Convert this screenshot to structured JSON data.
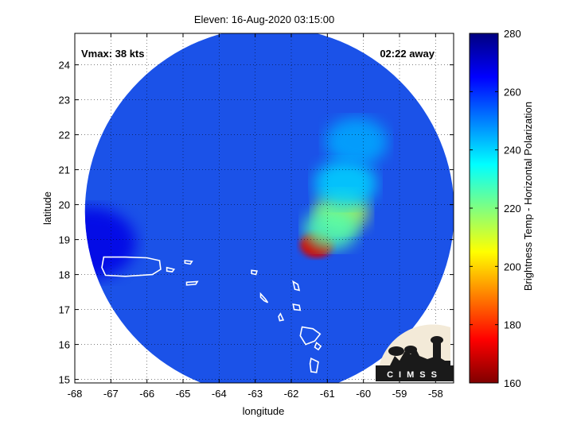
{
  "chart_data": {
    "type": "heatmap",
    "title": "Eleven: 16-Aug-2020 03:15:00",
    "xlabel": "longitude",
    "ylabel": "latitude",
    "xlim": [
      -68,
      -57.5
    ],
    "ylim": [
      14.9,
      24.9
    ],
    "xticks": [
      -68,
      -67,
      -66,
      -65,
      -64,
      -63,
      -62,
      -61,
      -60,
      -59,
      -58
    ],
    "yticks": [
      15,
      16,
      17,
      18,
      19,
      20,
      21,
      22,
      23,
      24
    ],
    "grid": true,
    "annotations": {
      "vmax": "Vmax: 38 kts",
      "time_away": "02:22 away"
    },
    "colorbar": {
      "label": "Brightness Temp - Horizontal Polarization",
      "range": [
        160,
        280
      ],
      "ticks": [
        160,
        180,
        200,
        220,
        240,
        260,
        280
      ]
    },
    "swath_center": [
      -62.6,
      19.8
    ],
    "features": [
      {
        "lon": -61.3,
        "lat": 18.85,
        "value": 170
      },
      {
        "lon": -60.6,
        "lat": 19.8,
        "value": 215
      },
      {
        "lon": -60.9,
        "lat": 19.3,
        "value": 225
      },
      {
        "lon": -60.5,
        "lat": 20.6,
        "value": 240
      },
      {
        "lon": -60.2,
        "lat": 21.8,
        "value": 245
      },
      {
        "lon": -67.6,
        "lat": 18.9,
        "value": 268
      }
    ],
    "coastlines": [
      {
        "name": "",
        "lonlat": [
          [
            -67.2,
            18.5
          ],
          [
            -66.6,
            18.5
          ],
          [
            -66.0,
            18.48
          ],
          [
            -65.65,
            18.4
          ],
          [
            -65.62,
            18.15
          ],
          [
            -65.85,
            18.0
          ],
          [
            -66.6,
            17.95
          ],
          [
            -67.15,
            17.98
          ],
          [
            -67.25,
            18.2
          ],
          [
            -67.2,
            18.5
          ]
        ]
      },
      {
        "name": "",
        "lonlat": [
          [
            -65.45,
            18.2
          ],
          [
            -65.25,
            18.15
          ],
          [
            -65.3,
            18.08
          ],
          [
            -65.45,
            18.1
          ],
          [
            -65.45,
            18.2
          ]
        ]
      },
      {
        "name": "",
        "lonlat": [
          [
            -64.95,
            18.4
          ],
          [
            -64.75,
            18.38
          ],
          [
            -64.8,
            18.3
          ],
          [
            -64.95,
            18.33
          ],
          [
            -64.95,
            18.4
          ]
        ]
      },
      {
        "name": "",
        "lonlat": [
          [
            -64.9,
            17.78
          ],
          [
            -64.6,
            17.8
          ],
          [
            -64.65,
            17.72
          ],
          [
            -64.9,
            17.7
          ],
          [
            -64.9,
            17.78
          ]
        ]
      },
      {
        "name": "",
        "lonlat": [
          [
            -63.1,
            18.12
          ],
          [
            -62.95,
            18.1
          ],
          [
            -62.98,
            18.0
          ],
          [
            -63.1,
            18.03
          ],
          [
            -63.1,
            18.12
          ]
        ]
      },
      {
        "name": "",
        "lonlat": [
          [
            -62.85,
            17.45
          ],
          [
            -62.72,
            17.3
          ],
          [
            -62.65,
            17.2
          ],
          [
            -62.75,
            17.25
          ],
          [
            -62.85,
            17.35
          ],
          [
            -62.85,
            17.45
          ]
        ]
      },
      {
        "name": "",
        "lonlat": [
          [
            -62.3,
            16.88
          ],
          [
            -62.22,
            16.7
          ],
          [
            -62.32,
            16.68
          ],
          [
            -62.35,
            16.8
          ],
          [
            -62.3,
            16.88
          ]
        ]
      },
      {
        "name": "",
        "lonlat": [
          [
            -61.95,
            17.8
          ],
          [
            -61.82,
            17.72
          ],
          [
            -61.78,
            17.55
          ],
          [
            -61.9,
            17.58
          ],
          [
            -61.95,
            17.8
          ]
        ]
      },
      {
        "name": "",
        "lonlat": [
          [
            -61.95,
            17.15
          ],
          [
            -61.78,
            17.12
          ],
          [
            -61.75,
            16.98
          ],
          [
            -61.92,
            17.0
          ],
          [
            -61.95,
            17.15
          ]
        ]
      },
      {
        "name": "",
        "lonlat": [
          [
            -61.7,
            16.5
          ],
          [
            -61.4,
            16.45
          ],
          [
            -61.2,
            16.3
          ],
          [
            -61.35,
            16.1
          ],
          [
            -61.6,
            16.0
          ],
          [
            -61.75,
            16.25
          ],
          [
            -61.7,
            16.5
          ]
        ]
      },
      {
        "name": "",
        "lonlat": [
          [
            -61.3,
            16.05
          ],
          [
            -61.18,
            15.95
          ],
          [
            -61.25,
            15.85
          ],
          [
            -61.35,
            15.92
          ],
          [
            -61.3,
            16.05
          ]
        ]
      },
      {
        "name": "",
        "lonlat": [
          [
            -61.45,
            15.6
          ],
          [
            -61.25,
            15.5
          ],
          [
            -61.3,
            15.2
          ],
          [
            -61.45,
            15.22
          ],
          [
            -61.48,
            15.45
          ],
          [
            -61.45,
            15.6
          ]
        ]
      }
    ]
  },
  "logo": {
    "text": "CIMSS"
  }
}
